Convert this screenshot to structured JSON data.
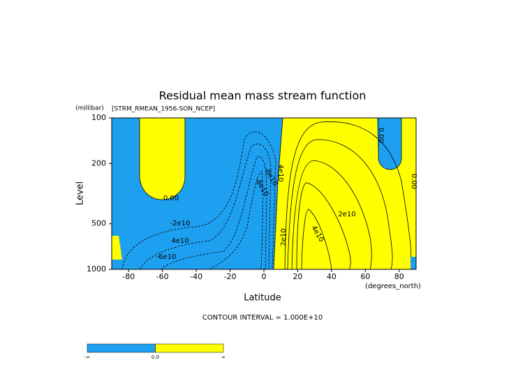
{
  "chart_data": {
    "type": "contour",
    "title": "Residual mean mass stream function",
    "subtitle": "[STRM_RMEAN_1956-SON_NCEP]",
    "y_unit": "(millibar)",
    "y_label": "Level",
    "x_unit": "(degrees_north)",
    "x_label": "Latitude",
    "note": "CONTOUR INTERVAL = 1.000E+10",
    "xlim": [
      -90,
      90
    ],
    "xticks": [
      -80,
      -60,
      -40,
      -20,
      0,
      20,
      40,
      60,
      80
    ],
    "ylim": [
      1000,
      100
    ],
    "yticks": [
      100,
      200,
      500,
      1000
    ],
    "log_y": true,
    "grid": false,
    "contour_labels": [
      "0.00",
      "-2e10",
      "4e10",
      "-6e10",
      "-6e10",
      "-8e10",
      "4e10",
      "2e10",
      "2e10",
      "4e10",
      "0.00",
      "0.00"
    ],
    "colorbar": {
      "colors": [
        "#1ea0f0",
        "#ffff00"
      ],
      "labels": [
        "-∞",
        "0.0",
        "∞"
      ]
    }
  }
}
